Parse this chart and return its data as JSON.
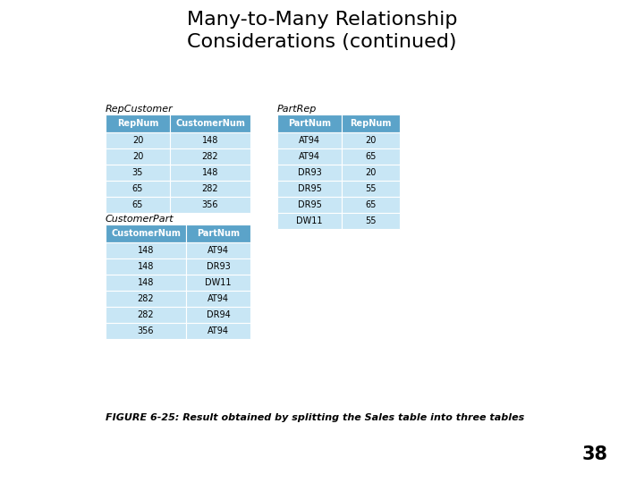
{
  "title": "Many-to-Many Relationship\nConsiderations (continued)",
  "title_fontsize": 16,
  "caption": "FIGURE 6-25: Result obtained by splitting the Sales table into three tables",
  "page_number": "38",
  "bg_color": "#ffffff",
  "header_color": "#5BA3C9",
  "row_color_light": "#C8E6F5",
  "table_RepCustomer": {
    "title": "RepCustomer",
    "headers": [
      "RepNum",
      "CustomerNum"
    ],
    "rows": [
      [
        "20",
        "148"
      ],
      [
        "20",
        "282"
      ],
      [
        "35",
        "148"
      ],
      [
        "65",
        "282"
      ],
      [
        "65",
        "356"
      ]
    ]
  },
  "table_PartRep": {
    "title": "PartRep",
    "headers": [
      "PartNum",
      "RepNum"
    ],
    "rows": [
      [
        "AT94",
        "20"
      ],
      [
        "AT94",
        "65"
      ],
      [
        "DR93",
        "20"
      ],
      [
        "DR95",
        "55"
      ],
      [
        "DR95",
        "65"
      ],
      [
        "DW11",
        "55"
      ]
    ]
  },
  "table_CustomerPart": {
    "title": "CustomerPart",
    "headers": [
      "CustomerNum",
      "PartNum"
    ],
    "rows": [
      [
        "148",
        "AT94"
      ],
      [
        "148",
        "DR93"
      ],
      [
        "148",
        "DW11"
      ],
      [
        "282",
        "AT94"
      ],
      [
        "282",
        "DR94"
      ],
      [
        "356",
        "AT94"
      ]
    ]
  }
}
